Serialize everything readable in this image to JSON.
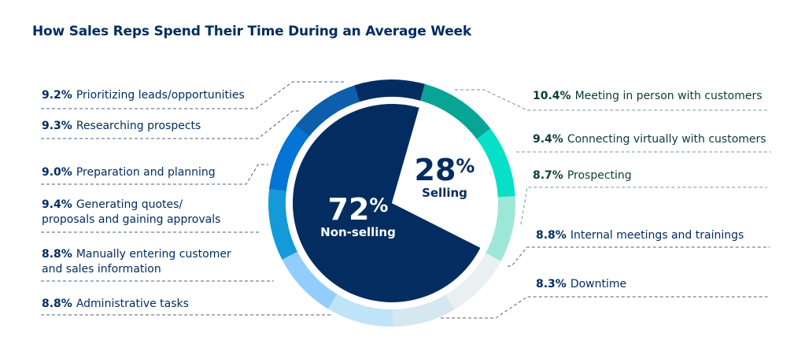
{
  "title": "How Sales Reps Spend Their Time During an Average Week",
  "chart_data": {
    "type": "pie",
    "title": "How Sales Reps Spend Their Time During an Average Week",
    "inner": [
      {
        "value": 72,
        "pct_label": "72",
        "label": "Non-selling",
        "color": "#032d60"
      },
      {
        "value": 28,
        "pct_label": "28",
        "label": "Selling",
        "color": "#ffffff"
      }
    ],
    "ring": [
      {
        "value": 10.4,
        "pct": "10.4%",
        "label": "Meeting in person with customers",
        "color": "#08a597",
        "group": "Selling"
      },
      {
        "value": 9.4,
        "pct": "9.4%",
        "label": "Connecting virtually with customers",
        "color": "#06e0c9",
        "group": "Selling"
      },
      {
        "value": 8.7,
        "pct": "8.7%",
        "label": "Prospecting",
        "color": "#9de7d9",
        "group": "Selling"
      },
      {
        "value": 8.8,
        "pct": "8.8%",
        "label": "Internal meetings and trainings",
        "color": "#eaf0f2",
        "group": "Non-selling"
      },
      {
        "value": 8.3,
        "pct": "8.3%",
        "label": "Downtime",
        "color": "#d5e7ef",
        "group": "Non-selling"
      },
      {
        "value": 8.8,
        "pct": "8.8%",
        "label": "Administrative tasks",
        "color": "#bfe4f8",
        "group": "Non-selling"
      },
      {
        "value": 8.8,
        "pct": "8.8%",
        "label": "Manually entering customer",
        "label2": "and sales information",
        "color": "#91cefc",
        "group": "Non-selling"
      },
      {
        "value": 9.4,
        "pct": "9.4%",
        "label": "Generating quotes/",
        "label2": "proposals and gaining approvals",
        "color": "#149ad8",
        "group": "Non-selling"
      },
      {
        "value": 9.0,
        "pct": "9.0%",
        "label": "Preparation and planning",
        "color": "#0474d6",
        "group": "Non-selling"
      },
      {
        "value": 9.3,
        "pct": "9.3%",
        "label": "Researching prospects",
        "color": "#0d5fac",
        "group": "Non-selling"
      },
      {
        "value": 9.2,
        "pct": "9.2%",
        "label": "Prioritizing leads/opportunities",
        "color": "#032d60",
        "group": "Non-selling"
      }
    ]
  }
}
